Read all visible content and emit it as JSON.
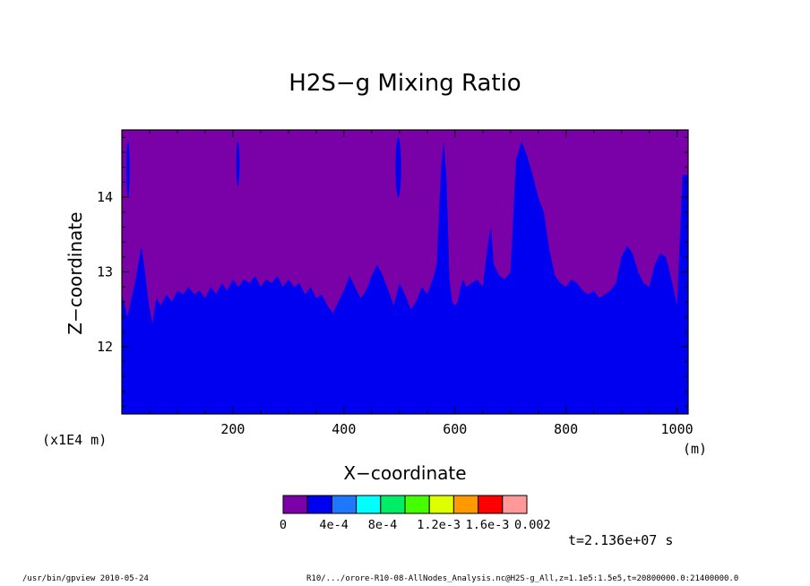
{
  "chart_data": {
    "type": "contour",
    "title": "H2S−g Mixing Ratio",
    "xlabel": "X−coordinate",
    "ylabel": "Z−coordinate",
    "x_unit": "(m)",
    "y_unit": "(x1E4 m)",
    "xlim": [
      0,
      1020
    ],
    "ylim": [
      11.1,
      14.9
    ],
    "x_ticks": [
      200,
      400,
      600,
      800,
      1000
    ],
    "y_ticks": [
      12,
      13,
      14
    ],
    "contour_levels": [
      0,
      0.0002,
      0.0004,
      0.0006,
      0.0008,
      0.001,
      0.0012,
      0.0014,
      0.0016,
      0.0018,
      0.002
    ],
    "colorbar": {
      "colors": [
        "#7a00a8",
        "#0000f0",
        "#1e78ff",
        "#00ffff",
        "#00ee66",
        "#44ff00",
        "#ddff00",
        "#ff9900",
        "#ff0000",
        "#ff9999"
      ],
      "labels": [
        "0",
        "4e-4",
        "8e-4",
        "1.2e-3",
        "1.6e-3",
        "0.002"
      ]
    },
    "series": [
      {
        "fill": "#0000f0",
        "boundary_x": [
          0,
          10,
          25,
          35,
          40,
          48,
          55,
          62,
          70,
          80,
          90,
          100,
          110,
          120,
          130,
          140,
          150,
          160,
          170,
          180,
          190,
          200,
          210,
          220,
          230,
          240,
          250,
          260,
          270,
          280,
          290,
          300,
          310,
          320,
          330,
          340,
          350,
          360,
          370,
          380,
          390,
          400,
          410,
          420,
          430,
          440,
          450,
          460,
          470,
          480,
          490,
          500,
          510,
          520,
          530,
          540,
          550,
          560,
          567,
          575,
          580,
          585,
          590,
          595,
          600,
          605,
          610,
          615,
          620,
          630,
          640,
          650,
          660,
          665,
          670,
          680,
          690,
          700,
          710,
          720,
          730,
          740,
          750,
          760,
          770,
          780,
          790,
          800,
          810,
          820,
          830,
          840,
          850,
          860,
          870,
          880,
          890,
          900,
          910,
          920,
          930,
          940,
          950,
          960,
          970,
          980,
          990,
          1000,
          1010,
          1020
        ],
        "boundary_z": [
          12.7,
          12.4,
          12.9,
          13.35,
          13.1,
          12.6,
          12.3,
          12.65,
          12.55,
          12.7,
          12.6,
          12.75,
          12.7,
          12.8,
          12.7,
          12.75,
          12.65,
          12.8,
          12.7,
          12.85,
          12.75,
          12.9,
          12.8,
          12.9,
          12.85,
          12.95,
          12.8,
          12.9,
          12.85,
          12.95,
          12.8,
          12.9,
          12.8,
          12.85,
          12.7,
          12.8,
          12.65,
          12.7,
          12.55,
          12.45,
          12.6,
          12.75,
          12.95,
          12.8,
          12.65,
          12.75,
          12.95,
          13.1,
          12.95,
          12.75,
          12.55,
          12.85,
          12.7,
          12.5,
          12.6,
          12.8,
          12.7,
          12.9,
          13.1,
          14.4,
          14.75,
          14.2,
          12.9,
          12.6,
          12.55,
          12.6,
          12.8,
          12.9,
          12.8,
          12.85,
          12.9,
          12.8,
          13.4,
          13.6,
          13.1,
          12.95,
          12.9,
          13.0,
          14.5,
          14.75,
          14.55,
          14.3,
          14.0,
          13.8,
          13.3,
          12.95,
          12.85,
          12.8,
          12.9,
          12.85,
          12.75,
          12.7,
          12.75,
          12.65,
          12.7,
          12.75,
          12.85,
          13.2,
          13.35,
          13.25,
          13.0,
          12.85,
          12.8,
          13.1,
          13.25,
          13.2,
          12.9,
          12.55,
          14.3,
          14.3
        ]
      },
      {
        "fill": "#0000f0",
        "note_islands": [
          {
            "x": [
              8,
              14
            ],
            "z": [
              14.0,
              14.75
            ]
          },
          {
            "x": [
              206,
              212
            ],
            "z": [
              14.15,
              14.75
            ]
          },
          {
            "x": [
              493,
              503
            ],
            "z": [
              14.0,
              14.8
            ]
          }
        ]
      }
    ]
  },
  "annotations": {
    "timestamp": "t=2.136e+07 s",
    "footer_left": "/usr/bin/gpview   2010-05-24",
    "footer_right": "R10/.../orore-R10-08-AllNodes_Analysis.nc@H2S-g_All,z=1.1e5:1.5e5,t=20800000.0:21400000.0"
  }
}
